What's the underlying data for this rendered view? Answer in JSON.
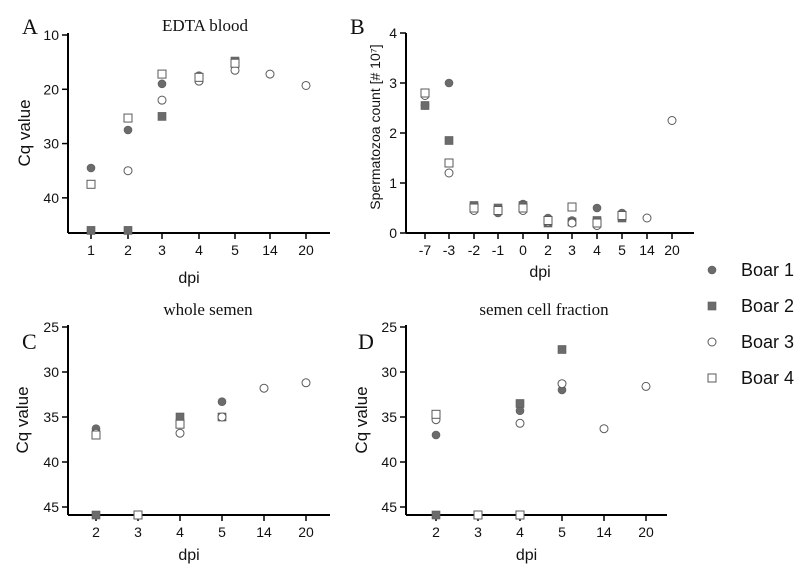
{
  "colors": {
    "filled": "#6b6b6b",
    "hollow": "#ffffff",
    "stroke": "#5a5a5a",
    "axis": "#000000",
    "text": "#111111"
  },
  "legend": {
    "position": "right",
    "items": [
      {
        "label": "Boar 1",
        "marker": "circle",
        "fill": "filled"
      },
      {
        "label": "Boar 2",
        "marker": "square",
        "fill": "filled"
      },
      {
        "label": "Boar 3",
        "marker": "circle",
        "fill": "hollow"
      },
      {
        "label": "Boar 4",
        "marker": "square",
        "fill": "hollow"
      }
    ]
  },
  "chart_data": [
    {
      "panel_letter": "A",
      "title": "EDTA blood",
      "type": "scatter",
      "xlabel": "dpi",
      "ylabel": "Cq value",
      "y_inverted": true,
      "ylim": [
        10,
        45
      ],
      "yticks": [
        10,
        20,
        30,
        40
      ],
      "categories": [
        "1",
        "2",
        "3",
        "4",
        "5",
        "14",
        "20"
      ],
      "series": [
        {
          "name": "Boar 1",
          "points": [
            {
              "x": "1",
              "y": 34.5
            },
            {
              "x": "2",
              "y": 27.5
            },
            {
              "x": "3",
              "y": 19.0
            },
            {
              "x": "4",
              "y": 17.5
            },
            {
              "x": "5",
              "y": 15.0
            }
          ]
        },
        {
          "name": "Boar 2",
          "points": [
            {
              "x": "1",
              "y": 46.0
            },
            {
              "x": "2",
              "y": 46.0
            },
            {
              "x": "3",
              "y": 25.0
            },
            {
              "x": "4",
              "y": 18.0
            },
            {
              "x": "5",
              "y": 14.8
            }
          ]
        },
        {
          "name": "Boar 3",
          "points": [
            {
              "x": "2",
              "y": 35.0
            },
            {
              "x": "3",
              "y": 22.0
            },
            {
              "x": "4",
              "y": 18.5
            },
            {
              "x": "5",
              "y": 16.5
            },
            {
              "x": "14",
              "y": 17.2
            },
            {
              "x": "20",
              "y": 19.3
            }
          ]
        },
        {
          "name": "Boar 4",
          "points": [
            {
              "x": "1",
              "y": 37.5
            },
            {
              "x": "2",
              "y": 25.3
            },
            {
              "x": "3",
              "y": 17.2
            },
            {
              "x": "4",
              "y": 17.8
            },
            {
              "x": "5",
              "y": 15.2
            }
          ]
        }
      ]
    },
    {
      "panel_letter": "B",
      "title": "",
      "type": "scatter",
      "xlabel": "dpi",
      "ylabel": "Spermatozoa count [# 10⁷]",
      "y_inverted": false,
      "ylim": [
        0,
        4
      ],
      "yticks": [
        0,
        1,
        2,
        3,
        4
      ],
      "categories": [
        "-7",
        "-3",
        "-2",
        "-1",
        "0",
        "2",
        "3",
        "4",
        "5",
        "14",
        "20"
      ],
      "series": [
        {
          "name": "Boar 1",
          "points": [
            {
              "x": "-7",
              "y": 2.55
            },
            {
              "x": "-3",
              "y": 3.0
            },
            {
              "x": "-2",
              "y": 0.5
            },
            {
              "x": "-1",
              "y": 0.4
            },
            {
              "x": "0",
              "y": 0.58
            },
            {
              "x": "2",
              "y": 0.3
            },
            {
              "x": "3",
              "y": 0.25
            },
            {
              "x": "4",
              "y": 0.5
            },
            {
              "x": "5",
              "y": 0.4
            }
          ]
        },
        {
          "name": "Boar 2",
          "points": [
            {
              "x": "-7",
              "y": 2.55
            },
            {
              "x": "-3",
              "y": 1.85
            },
            {
              "x": "-2",
              "y": 0.55
            },
            {
              "x": "-1",
              "y": 0.5
            },
            {
              "x": "0",
              "y": 0.55
            },
            {
              "x": "2",
              "y": 0.2
            },
            {
              "x": "3",
              "y": 0.22
            },
            {
              "x": "4",
              "y": 0.25
            },
            {
              "x": "5",
              "y": 0.3
            }
          ]
        },
        {
          "name": "Boar 3",
          "points": [
            {
              "x": "-7",
              "y": 2.75
            },
            {
              "x": "-3",
              "y": 1.2
            },
            {
              "x": "-2",
              "y": 0.45
            },
            {
              "x": "-1",
              "y": 0.45
            },
            {
              "x": "0",
              "y": 0.45
            },
            {
              "x": "2",
              "y": 0.22
            },
            {
              "x": "3",
              "y": 0.2
            },
            {
              "x": "4",
              "y": 0.15
            },
            {
              "x": "5",
              "y": 0.35
            },
            {
              "x": "14",
              "y": 0.3
            },
            {
              "x": "20",
              "y": 2.25
            }
          ]
        },
        {
          "name": "Boar 4",
          "points": [
            {
              "x": "-7",
              "y": 2.8
            },
            {
              "x": "-3",
              "y": 1.4
            },
            {
              "x": "-2",
              "y": 0.5
            },
            {
              "x": "-1",
              "y": 0.45
            },
            {
              "x": "0",
              "y": 0.5
            },
            {
              "x": "2",
              "y": 0.25
            },
            {
              "x": "3",
              "y": 0.52
            },
            {
              "x": "4",
              "y": 0.2
            },
            {
              "x": "5",
              "y": 0.35
            }
          ]
        }
      ]
    },
    {
      "panel_letter": "C",
      "title": "whole semen",
      "type": "scatter",
      "xlabel": "dpi",
      "ylabel": "Cq value",
      "y_inverted": true,
      "ylim": [
        25,
        45
      ],
      "yticks": [
        25,
        30,
        35,
        40,
        45
      ],
      "categories": [
        "2",
        "3",
        "4",
        "5",
        "14",
        "20"
      ],
      "series": [
        {
          "name": "Boar 1",
          "points": [
            {
              "x": "2",
              "y": 36.3
            },
            {
              "x": "4",
              "y": 35.3
            },
            {
              "x": "5",
              "y": 33.3
            }
          ]
        },
        {
          "name": "Boar 2",
          "points": [
            {
              "x": "2",
              "y": 46.0
            },
            {
              "x": "3",
              "y": 46.0
            },
            {
              "x": "4",
              "y": 35.0
            },
            {
              "x": "5",
              "y": 35.0
            }
          ]
        },
        {
          "name": "Boar 3",
          "points": [
            {
              "x": "2",
              "y": 36.8
            },
            {
              "x": "4",
              "y": 36.8
            },
            {
              "x": "5",
              "y": 35.0
            },
            {
              "x": "14",
              "y": 31.8
            },
            {
              "x": "20",
              "y": 31.2
            }
          ]
        },
        {
          "name": "Boar 4",
          "points": [
            {
              "x": "2",
              "y": 37.0
            },
            {
              "x": "3",
              "y": 46.0
            },
            {
              "x": "4",
              "y": 35.8
            }
          ]
        }
      ]
    },
    {
      "panel_letter": "D",
      "title": "semen cell fraction",
      "type": "scatter",
      "xlabel": "dpi",
      "ylabel": "Cq value",
      "y_inverted": true,
      "ylim": [
        25,
        45
      ],
      "yticks": [
        25,
        30,
        35,
        40,
        45
      ],
      "categories": [
        "2",
        "3",
        "4",
        "5",
        "14",
        "20"
      ],
      "series": [
        {
          "name": "Boar 1",
          "points": [
            {
              "x": "2",
              "y": 37.0
            },
            {
              "x": "4",
              "y": 34.3
            },
            {
              "x": "5",
              "y": 32.0
            }
          ]
        },
        {
          "name": "Boar 2",
          "points": [
            {
              "x": "2",
              "y": 46.0
            },
            {
              "x": "3",
              "y": 46.0
            },
            {
              "x": "4",
              "y": 33.5
            },
            {
              "x": "5",
              "y": 27.5
            }
          ]
        },
        {
          "name": "Boar 3",
          "points": [
            {
              "x": "2",
              "y": 35.3
            },
            {
              "x": "4",
              "y": 35.7
            },
            {
              "x": "5",
              "y": 31.3
            },
            {
              "x": "14",
              "y": 36.3
            },
            {
              "x": "20",
              "y": 31.6
            }
          ]
        },
        {
          "name": "Boar 4",
          "points": [
            {
              "x": "2",
              "y": 34.7
            },
            {
              "x": "3",
              "y": 46.0
            },
            {
              "x": "4",
              "y": 46.0
            }
          ]
        }
      ]
    }
  ]
}
